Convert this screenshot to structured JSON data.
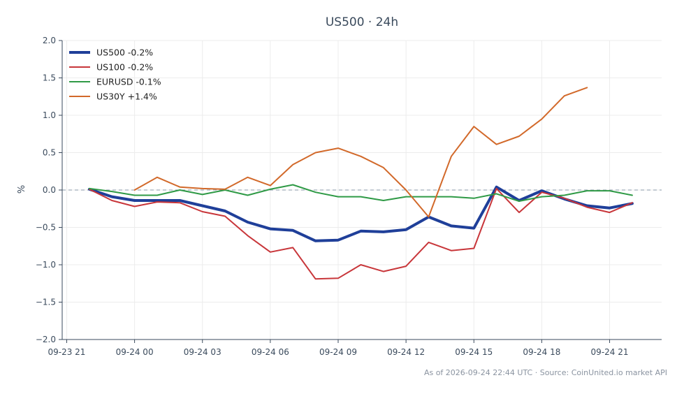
{
  "chart_data": {
    "type": "line",
    "title": "US500 · 24h",
    "ylabel": "%",
    "xlabel": "",
    "ylim": [
      -2.0,
      2.0
    ],
    "yticks": [
      2.0,
      1.5,
      1.0,
      0.5,
      0.0,
      -0.5,
      -1.0,
      -1.5,
      -2.0
    ],
    "ytick_labels": [
      "2.0",
      "1.5",
      "1.0",
      "0.5",
      "0.0",
      "−0.5",
      "−1.0",
      "−1.5",
      "−2.0"
    ],
    "xlim_hours": [
      -0.2,
      26.3
    ],
    "xticks_hours": [
      0,
      3,
      6,
      9,
      12,
      15,
      18,
      21,
      24
    ],
    "xtick_labels": [
      "09-23 21",
      "09-24 00",
      "09-24 03",
      "09-24 06",
      "09-24 09",
      "09-24 12",
      "09-24 15",
      "09-24 18",
      "09-24 21"
    ],
    "grid": true,
    "zero_line": true,
    "legend_position": "top-left",
    "footer": "As of 2026-09-24 22:44 UTC · Source: CoinUnited.io market API",
    "series": [
      {
        "name": "US500 -0.2%",
        "color": "#1f3f99",
        "width": 4,
        "x": [
          1,
          2,
          3,
          4,
          5,
          6,
          7,
          8,
          9,
          10,
          11,
          12,
          13,
          14,
          15,
          16,
          17,
          18,
          19,
          20,
          21,
          22,
          23,
          24,
          25
        ],
        "y": [
          0.01,
          -0.09,
          -0.14,
          -0.14,
          -0.14,
          -0.21,
          -0.28,
          -0.43,
          -0.52,
          -0.54,
          -0.68,
          -0.67,
          -0.55,
          -0.56,
          -0.53,
          -0.36,
          -0.48,
          -0.51,
          0.04,
          -0.14,
          -0.01,
          -0.12,
          -0.21,
          -0.24,
          -0.18
        ]
      },
      {
        "name": "US100 -0.2%",
        "color": "#c8363a",
        "width": 2,
        "x": [
          1,
          2,
          3,
          4,
          5,
          6,
          7,
          8,
          9,
          10,
          11,
          12,
          13,
          14,
          15,
          16,
          17,
          18,
          19,
          20,
          21,
          22,
          23,
          24,
          25
        ],
        "y": [
          0.01,
          -0.14,
          -0.22,
          -0.16,
          -0.17,
          -0.29,
          -0.35,
          -0.61,
          -0.83,
          -0.77,
          -1.19,
          -1.18,
          -1.0,
          -1.09,
          -1.02,
          -0.7,
          -0.81,
          -0.78,
          0.02,
          -0.3,
          -0.03,
          -0.11,
          -0.23,
          -0.3,
          -0.17
        ]
      },
      {
        "name": "EURUSD -0.1%",
        "color": "#2f9a46",
        "width": 2,
        "x": [
          1,
          2,
          3,
          4,
          5,
          6,
          7,
          8,
          9,
          10,
          11,
          12,
          13,
          14,
          15,
          16,
          17,
          18,
          19,
          20,
          21,
          22,
          23,
          24,
          25
        ],
        "y": [
          0.02,
          -0.02,
          -0.07,
          -0.07,
          0.0,
          -0.06,
          0.0,
          -0.07,
          0.01,
          0.07,
          -0.03,
          -0.09,
          -0.09,
          -0.14,
          -0.09,
          -0.09,
          -0.09,
          -0.11,
          -0.05,
          -0.15,
          -0.09,
          -0.07,
          -0.01,
          -0.01,
          -0.07
        ]
      },
      {
        "name": "US30Y +1.4%",
        "color": "#d2692a",
        "width": 2,
        "x": [
          3,
          4,
          5,
          6,
          7,
          8,
          9,
          10,
          11,
          12,
          13,
          14,
          15,
          16,
          17,
          18,
          19,
          20,
          21,
          22,
          23
        ],
        "y": [
          0.0,
          0.17,
          0.04,
          0.02,
          0.01,
          0.17,
          0.06,
          0.34,
          0.5,
          0.56,
          0.45,
          0.3,
          0.0,
          -0.36,
          0.45,
          0.85,
          0.61,
          0.72,
          0.95,
          1.26,
          1.37
        ]
      }
    ]
  }
}
